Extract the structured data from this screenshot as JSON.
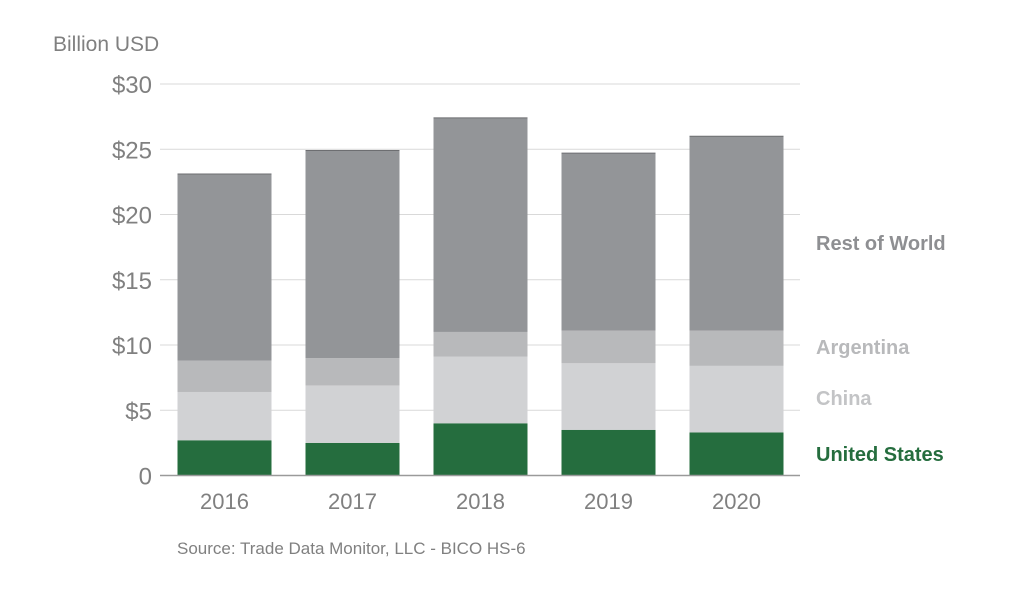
{
  "chart_data": {
    "type": "bar",
    "stacked": true,
    "unit_label": "Billion USD",
    "source": "Source: Trade Data Monitor, LLC - BICO HS-6",
    "categories": [
      "2016",
      "2017",
      "2018",
      "2019",
      "2020"
    ],
    "ylim": [
      0,
      30
    ],
    "yticks": [
      {
        "value": 0,
        "label": "0"
      },
      {
        "value": 5,
        "label": "$5"
      },
      {
        "value": 10,
        "label": "$10"
      },
      {
        "value": 15,
        "label": "$15"
      },
      {
        "value": 20,
        "label": "$20"
      },
      {
        "value": 25,
        "label": "$25"
      },
      {
        "value": 30,
        "label": "$30"
      }
    ],
    "grid": true,
    "legend_position": "right",
    "series": [
      {
        "name": "United States",
        "key": "united-states",
        "color": "#256d3e",
        "label_color": "#256d3e",
        "values": [
          2.7,
          2.5,
          4.0,
          3.5,
          3.3
        ]
      },
      {
        "name": "China",
        "key": "china",
        "color": "#d1d2d4",
        "label_color": "#c3c4c6",
        "values": [
          3.7,
          4.4,
          5.1,
          5.1,
          5.1
        ]
      },
      {
        "name": "Argentina",
        "key": "argentina",
        "color": "#b8b9bb",
        "label_color": "#b8b9bb",
        "values": [
          2.4,
          2.1,
          1.9,
          2.5,
          2.7
        ]
      },
      {
        "name": "Rest of World",
        "key": "rest-of-world",
        "color": "#939598",
        "label_color": "#8e8f92",
        "values": [
          14.3,
          15.9,
          16.4,
          13.6,
          14.9
        ]
      }
    ]
  }
}
